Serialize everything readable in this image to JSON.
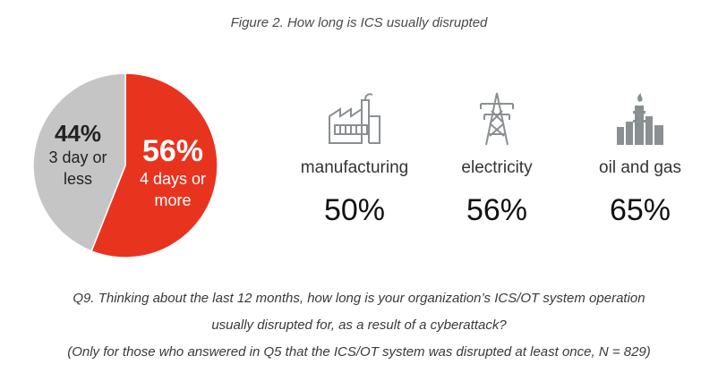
{
  "title": "Figure 2. How long is ICS usually disrupted",
  "colors": {
    "red": "#e8341f",
    "grey": "#c5c5c5",
    "icon": "#8a8f91"
  },
  "chart_data": [
    {
      "type": "pie",
      "slices": [
        {
          "pct_label": "56%",
          "label_line1": "4 days or",
          "label_line2": "more",
          "value": 56,
          "color": "#e8341f"
        },
        {
          "pct_label": "44%",
          "label_line1": "3 day or",
          "label_line2": "less",
          "value": 44,
          "color": "#c5c5c5"
        }
      ]
    },
    {
      "type": "table",
      "industries": [
        {
          "name": "manufacturing",
          "value_label": "50%",
          "value": 50,
          "icon": "factory-icon"
        },
        {
          "name": "electricity",
          "value_label": "56%",
          "value": 56,
          "icon": "power-tower-icon"
        },
        {
          "name": "oil and gas",
          "value_label": "65%",
          "value": 65,
          "icon": "refinery-icon"
        }
      ]
    }
  ],
  "notes": {
    "line1": "Q9. Thinking about the last 12 months, how long is your organization’s ICS/OT system operation",
    "line2": "usually disrupted for, as a result of a cyberattack?",
    "line3": "(Only for those who answered in Q5 that the ICS/OT system was disrupted at least once, N = 829)"
  }
}
